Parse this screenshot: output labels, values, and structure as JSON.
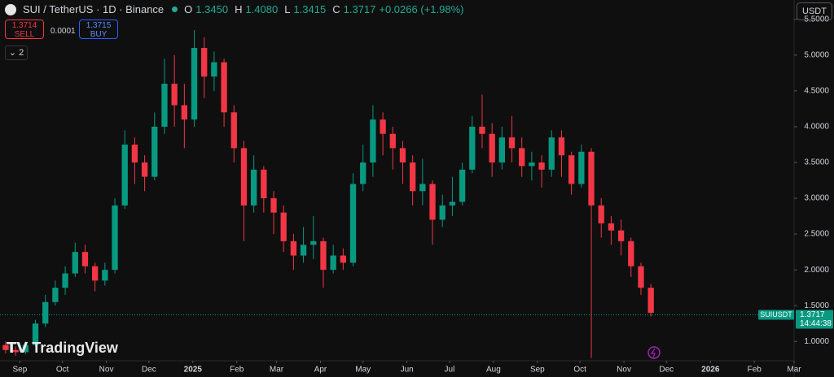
{
  "header": {
    "symbol": "SUI / TetherUS · 1D · Binance",
    "open_label": "O",
    "open": "1.3450",
    "high_label": "H",
    "high": "1.4080",
    "low_label": "L",
    "low": "1.3415",
    "close_label": "C",
    "close": "1.3717",
    "change": "+0.0266 (+1.98%)"
  },
  "trade": {
    "sell_price": "1.3714",
    "sell_label": "SELL",
    "spread": "0.0001",
    "buy_price": "1.3715",
    "buy_label": "BUY"
  },
  "indicators_count": "2",
  "currency": "USDT",
  "watermark": "TradingView",
  "chart_data": {
    "type": "candlestick",
    "x": [
      -10,
      -3,
      4,
      11,
      18,
      25,
      32,
      39,
      46,
      53,
      60,
      67,
      74,
      81,
      88,
      95,
      102,
      109,
      116,
      123,
      130,
      137,
      144,
      151,
      158,
      165,
      172,
      179,
      186,
      193,
      200,
      207,
      214,
      221,
      228,
      235,
      242,
      249,
      256,
      263,
      270,
      277,
      284,
      291,
      298,
      305,
      312,
      319,
      326,
      333,
      340,
      347,
      354,
      361,
      368,
      375,
      382,
      389,
      396,
      403,
      410,
      417,
      424,
      431,
      438,
      445
    ],
    "open": [
      0.95,
      0.88,
      0.85,
      0.95,
      1.25,
      1.55,
      1.75,
      1.95,
      2.25,
      2.05,
      1.85,
      2.0,
      2.9,
      3.75,
      3.5,
      3.3,
      4.0,
      4.6,
      4.3,
      4.1,
      5.1,
      4.7,
      4.9,
      4.2,
      3.7,
      2.9,
      3.4,
      3.0,
      2.8,
      2.4,
      2.2,
      2.35,
      2.4,
      2.0,
      2.2,
      2.1,
      3.2,
      3.5,
      4.1,
      3.9,
      3.7,
      3.5,
      3.1,
      3.2,
      2.7,
      2.9,
      2.95,
      3.4,
      4.0,
      3.9,
      3.5,
      3.85,
      3.7,
      3.45,
      3.5,
      3.4,
      3.85,
      3.6,
      3.2,
      3.65,
      2.9,
      2.65,
      2.55,
      2.4,
      2.05,
      1.75
    ],
    "high": [
      1.0,
      0.93,
      1.0,
      1.3,
      1.65,
      1.85,
      2.05,
      2.38,
      2.35,
      2.1,
      2.1,
      3.0,
      3.95,
      3.85,
      3.6,
      4.2,
      4.95,
      5.0,
      4.6,
      5.35,
      5.25,
      5.05,
      4.95,
      4.3,
      3.8,
      3.6,
      3.45,
      3.1,
      2.9,
      2.5,
      2.6,
      2.75,
      2.45,
      2.35,
      2.3,
      3.35,
      3.75,
      4.3,
      4.2,
      4.0,
      3.8,
      3.6,
      3.55,
      3.25,
      3.05,
      3.3,
      3.5,
      4.15,
      4.45,
      4.05,
      4.0,
      4.15,
      3.85,
      3.65,
      3.6,
      3.95,
      3.95,
      3.65,
      3.75,
      3.7,
      3.0,
      2.75,
      2.7,
      2.45,
      2.1,
      1.8
    ],
    "low": [
      0.83,
      0.8,
      0.82,
      0.93,
      1.2,
      1.5,
      1.65,
      1.9,
      1.95,
      1.7,
      1.78,
      1.95,
      2.85,
      3.2,
      3.1,
      3.25,
      3.9,
      4.0,
      3.7,
      4.0,
      4.4,
      4.5,
      4.0,
      3.5,
      2.4,
      2.8,
      2.8,
      2.5,
      2.25,
      2.0,
      2.1,
      2.15,
      1.75,
      1.95,
      2.0,
      2.05,
      3.1,
      3.3,
      3.6,
      3.4,
      3.2,
      2.9,
      2.9,
      2.35,
      2.6,
      2.75,
      2.9,
      3.35,
      3.7,
      3.3,
      3.4,
      3.5,
      3.3,
      3.25,
      3.15,
      3.3,
      3.3,
      3.05,
      3.15,
      0.77,
      2.45,
      2.35,
      2.2,
      1.9,
      1.65,
      1.35
    ],
    "close": [
      0.88,
      0.85,
      0.95,
      1.25,
      1.55,
      1.75,
      1.95,
      2.25,
      2.05,
      1.85,
      2.0,
      2.9,
      3.75,
      3.5,
      3.3,
      4.0,
      4.6,
      4.3,
      4.1,
      5.1,
      4.7,
      4.9,
      4.2,
      3.7,
      2.9,
      3.4,
      3.0,
      2.8,
      2.4,
      2.2,
      2.35,
      2.4,
      2.0,
      2.2,
      2.1,
      3.2,
      3.5,
      4.1,
      3.9,
      3.7,
      3.5,
      3.1,
      3.2,
      2.7,
      2.9,
      2.95,
      3.4,
      4.0,
      3.9,
      3.5,
      3.85,
      3.7,
      3.45,
      3.5,
      3.4,
      3.85,
      3.6,
      3.2,
      3.65,
      2.9,
      2.65,
      2.55,
      2.4,
      2.05,
      1.75,
      1.4
    ],
    "up_color": "#089981",
    "down_color": "#f23645",
    "xlim": [
      -14,
      546
    ],
    "xticks": [
      {
        "value": 0,
        "label": "Sep"
      },
      {
        "value": 30,
        "label": "Oct"
      },
      {
        "value": 61,
        "label": "Nov"
      },
      {
        "value": 91,
        "label": "Dec"
      },
      {
        "value": 122,
        "label": "2025"
      },
      {
        "value": 153,
        "label": "Feb"
      },
      {
        "value": 181,
        "label": "Mar"
      },
      {
        "value": 212,
        "label": "Apr"
      },
      {
        "value": 242,
        "label": "May"
      },
      {
        "value": 273,
        "label": "Jun"
      },
      {
        "value": 303,
        "label": "Jul"
      },
      {
        "value": 334,
        "label": "Aug"
      },
      {
        "value": 365,
        "label": "Sep"
      },
      {
        "value": 395,
        "label": "Oct"
      },
      {
        "value": 426,
        "label": "Nov"
      },
      {
        "value": 456,
        "label": "Dec"
      },
      {
        "value": 487,
        "label": "2026"
      },
      {
        "value": 518,
        "label": "Feb"
      },
      {
        "value": 546,
        "label": "Mar"
      }
    ],
    "ylim": [
      0.73,
      5.77
    ],
    "yticks": [
      {
        "value": 1,
        "label": "1.0000"
      },
      {
        "value": 1.5,
        "label": "1.5000"
      },
      {
        "value": 2,
        "label": "2.0000"
      },
      {
        "value": 2.5,
        "label": "2.5000"
      },
      {
        "value": 3,
        "label": "3.0000"
      },
      {
        "value": 3.5,
        "label": "3.5000"
      },
      {
        "value": 4,
        "label": "4.0000"
      },
      {
        "value": 4.5,
        "label": "4.5000"
      },
      {
        "value": 5,
        "label": "5.0000"
      },
      {
        "value": 5.5,
        "label": "5.5000"
      }
    ],
    "last_price": {
      "symbol": "SUIUSDT",
      "value": 1.3717,
      "countdown": "14:44:38"
    }
  }
}
